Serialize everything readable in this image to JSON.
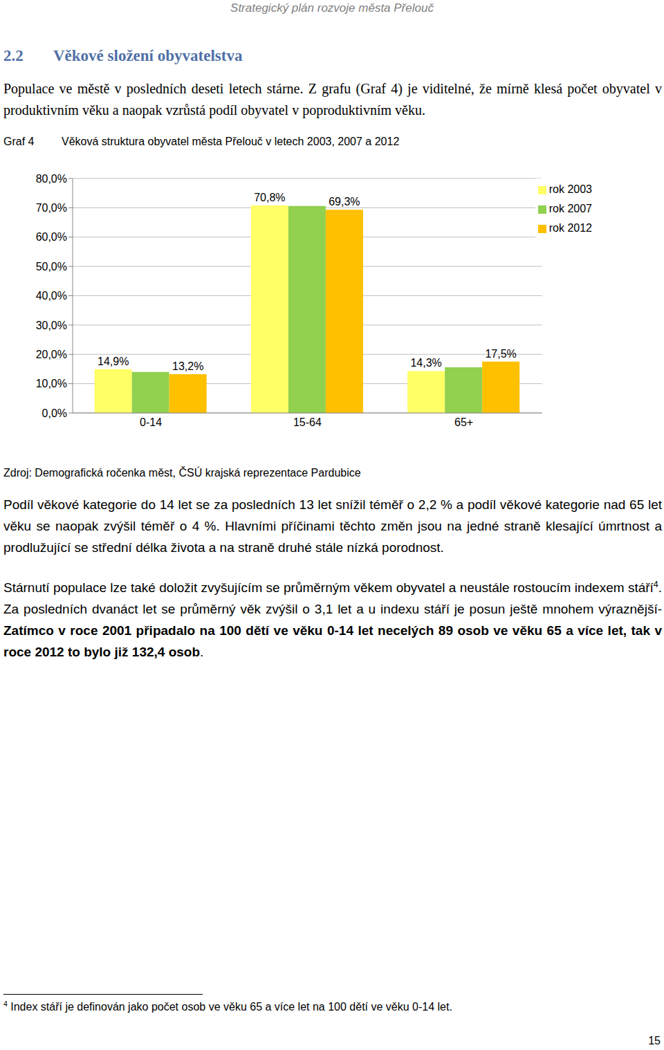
{
  "header": {
    "title": "Strategický plán rozvoje města Přelouč"
  },
  "section": {
    "number": "2.2",
    "title": "Věkové složení obyvatelstva"
  },
  "intro": "Populace ve městě v posledních deseti letech stárne. Z grafu (Graf 4) je viditelné, že mírně klesá počet obyvatel v produktivním věku a naopak vzrůstá podíl obyvatel v poproduktivním věku.",
  "caption": {
    "label": "Graf 4",
    "text": "Věková struktura obyvatel města Přelouč v letech 2003, 2007 a 2012"
  },
  "chart_data": {
    "type": "bar",
    "categories": [
      "0-14",
      "15-64",
      "65+"
    ],
    "series": [
      {
        "name": "rok 2003",
        "color": "#FFFF66",
        "values": [
          14.9,
          70.8,
          14.3
        ],
        "data_labels": true,
        "value_labels": [
          "14,9%",
          "70,8%",
          "14,3%"
        ]
      },
      {
        "name": "rok 2007",
        "color": "#92D050",
        "values": [
          14.0,
          70.6,
          15.6
        ]
      },
      {
        "name": "rok 2012",
        "color": "#FFC000",
        "values": [
          13.2,
          69.3,
          17.5
        ],
        "data_labels": true,
        "value_labels": [
          "13,2%",
          "69,3%",
          "17,5%"
        ]
      }
    ],
    "ylim": [
      0,
      80
    ],
    "yticks": [
      {
        "value": 0,
        "label": "0,0%"
      },
      {
        "value": 10,
        "label": "10,0%"
      },
      {
        "value": 20,
        "label": "20,0%"
      },
      {
        "value": 30,
        "label": "30,0%"
      },
      {
        "value": 40,
        "label": "40,0%"
      },
      {
        "value": 50,
        "label": "50,0%"
      },
      {
        "value": 60,
        "label": "60,0%"
      },
      {
        "value": 70,
        "label": "70,0%"
      },
      {
        "value": 80,
        "label": "80,0%"
      }
    ],
    "grid": true,
    "legend": "upper right"
  },
  "source": "Zdroj: Demografická ročenka měst, ČSÚ krajská reprezentace Pardubice",
  "paragraphs": [
    [
      {
        "text": "Podíl věkové kategorie do 14 let se za posledních 13 let snížil téměř o 2,2 % a podíl věkové kategorie nad 65 let věku se naopak zvýšil téměř o 4 %. Hlavními příčinami těchto změn jsou na jedné straně klesající úmrtnost a prodlužující se střední délka života a na straně druhé stále nízká porodnost.",
        "style": "normal"
      }
    ],
    [
      {
        "text": "Stárnutí populace lze také doložit zvyšujícím se průměrným věkem obyvatel a neustále rostoucím indexem stáří",
        "style": "normal"
      },
      {
        "text": "4",
        "style": "sup"
      },
      {
        "text": ". Za posledních dvanáct let se průměrný věk zvýšil o 3,1 let a u indexu stáří je posun ještě mnohem výraznější- ",
        "style": "normal"
      },
      {
        "text": "Zatímco v roce 2001 připadalo na 100 dětí ve věku 0-14 let necelých 89 osob ve věku 65 a více let, tak v roce 2012 to bylo již 132,4 osob",
        "style": "bold"
      },
      {
        "text": ".",
        "style": "normal"
      }
    ]
  ],
  "footnote": {
    "mark": "4",
    "text": "Index stáří je definován jako počet osob ve věku 65 a více let na 100 dětí ve věku 0-14 let."
  },
  "page_number": "15"
}
